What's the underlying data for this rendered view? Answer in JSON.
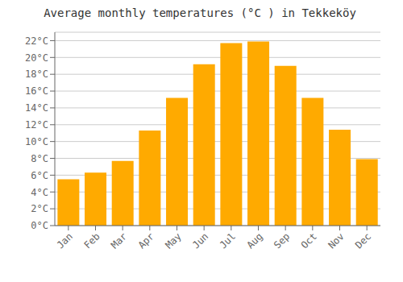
{
  "chart_data": {
    "type": "bar",
    "title": "Average monthly temperatures (°C ) in Tekkeköy",
    "categories": [
      "Jan",
      "Feb",
      "Mar",
      "Apr",
      "May",
      "Jun",
      "Jul",
      "Aug",
      "Sep",
      "Oct",
      "Nov",
      "Dec"
    ],
    "values": [
      5.5,
      6.3,
      7.7,
      11.3,
      15.2,
      19.2,
      21.7,
      21.9,
      19.0,
      15.2,
      11.4,
      7.9
    ],
    "color": "#FFAA00",
    "ylim": [
      0,
      23
    ],
    "yticks": [
      {
        "value": 0,
        "label": "0°C"
      },
      {
        "value": 2,
        "label": "2°C"
      },
      {
        "value": 4,
        "label": "4°C"
      },
      {
        "value": 6,
        "label": "6°C"
      },
      {
        "value": 8,
        "label": "8°C"
      },
      {
        "value": 10,
        "label": "10°C"
      },
      {
        "value": 12,
        "label": "12°C"
      },
      {
        "value": 14,
        "label": "14°C"
      },
      {
        "value": 16,
        "label": "16°C"
      },
      {
        "value": 18,
        "label": "18°C"
      },
      {
        "value": 20,
        "label": "20°C"
      },
      {
        "value": 22,
        "label": "22°C"
      }
    ],
    "grid": true
  }
}
